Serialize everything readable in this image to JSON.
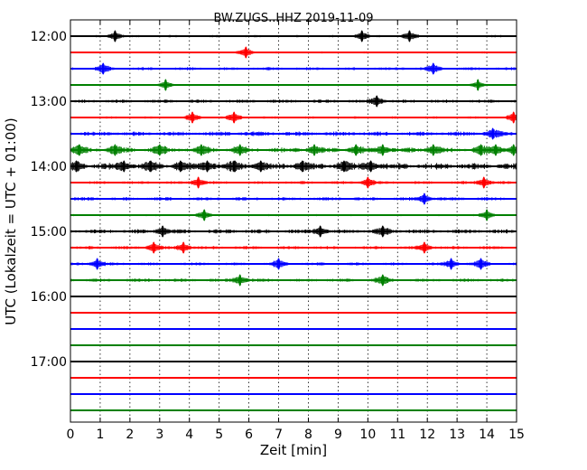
{
  "chart_data": {
    "type": "line",
    "title": "BW.ZUGS..HHZ 2019-11-09",
    "xlabel": "Zeit  [min]",
    "ylabel": "UTC (Lokalzeit = UTC + 01:00)",
    "xlim": [
      0,
      15
    ],
    "x_ticks": [
      "0",
      "1",
      "2",
      "3",
      "4",
      "5",
      "6",
      "7",
      "8",
      "9",
      "10",
      "11",
      "12",
      "13",
      "14",
      "15"
    ],
    "y_tick_labels": [
      "12:00",
      "13:00",
      "14:00",
      "15:00",
      "16:00",
      "17:00"
    ],
    "grid": "vertical dotted lines at every minute",
    "trace_colors": [
      "#000000",
      "#ff0000",
      "#0000ff",
      "#008000"
    ],
    "trace_interval_min": 15,
    "traces": [
      {
        "start": "12:00",
        "color": "#000000",
        "level": 0.45,
        "events": [
          1.5,
          9.8,
          11.4
        ]
      },
      {
        "start": "12:15",
        "color": "#ff0000",
        "level": 0.4,
        "events": [
          5.9
        ]
      },
      {
        "start": "12:30",
        "color": "#0000ff",
        "level": 0.6,
        "events": [
          1.1,
          12.2
        ]
      },
      {
        "start": "12:45",
        "color": "#008000",
        "level": 0.2,
        "events": [
          3.2,
          13.7
        ]
      },
      {
        "start": "13:00",
        "color": "#000000",
        "level": 0.7,
        "events": [
          10.3
        ]
      },
      {
        "start": "13:15",
        "color": "#ff0000",
        "level": 0.45,
        "events": [
          4.1,
          5.5,
          14.9
        ]
      },
      {
        "start": "13:30",
        "color": "#0000ff",
        "level": 0.9,
        "events": [
          14.2
        ]
      },
      {
        "start": "13:45",
        "color": "#008000",
        "level": 1.0,
        "events": [
          0.3,
          1.5,
          3.0,
          4.4,
          5.7,
          8.2,
          9.6,
          10.5,
          12.2,
          13.8,
          14.3,
          14.9
        ]
      },
      {
        "start": "14:00",
        "color": "#000000",
        "level": 1.3,
        "events": [
          0.2,
          1.8,
          2.7,
          3.7,
          4.6,
          5.5,
          6.4,
          7.8,
          9.2,
          10.1
        ]
      },
      {
        "start": "14:15",
        "color": "#ff0000",
        "level": 0.6,
        "events": [
          4.3,
          10.0,
          13.9
        ]
      },
      {
        "start": "14:30",
        "color": "#0000ff",
        "level": 0.7,
        "events": [
          11.9
        ]
      },
      {
        "start": "14:45",
        "color": "#008000",
        "level": 0.4,
        "events": [
          4.5,
          14.0
        ]
      },
      {
        "start": "15:00",
        "color": "#000000",
        "level": 0.85,
        "events": [
          3.1,
          8.4,
          10.5
        ]
      },
      {
        "start": "15:15",
        "color": "#ff0000",
        "level": 0.65,
        "events": [
          2.8,
          3.8,
          11.9
        ]
      },
      {
        "start": "15:30",
        "color": "#0000ff",
        "level": 0.6,
        "events": [
          0.9,
          7.0,
          12.8,
          13.8
        ]
      },
      {
        "start": "15:45",
        "color": "#008000",
        "level": 0.7,
        "events": [
          5.7,
          10.5
        ]
      },
      {
        "start": "16:00",
        "color": "#000000",
        "level": 0.0,
        "events": []
      },
      {
        "start": "16:15",
        "color": "#ff0000",
        "level": 0.0,
        "events": []
      },
      {
        "start": "16:30",
        "color": "#0000ff",
        "level": 0.0,
        "events": []
      },
      {
        "start": "16:45",
        "color": "#008000",
        "level": 0.0,
        "events": []
      },
      {
        "start": "17:00",
        "color": "#000000",
        "level": 0.0,
        "events": []
      },
      {
        "start": "17:15",
        "color": "#ff0000",
        "level": 0.0,
        "events": []
      },
      {
        "start": "17:30",
        "color": "#0000ff",
        "level": 0.0,
        "events": []
      },
      {
        "start": "17:45",
        "color": "#008000",
        "level": 0.0,
        "events": []
      }
    ]
  }
}
